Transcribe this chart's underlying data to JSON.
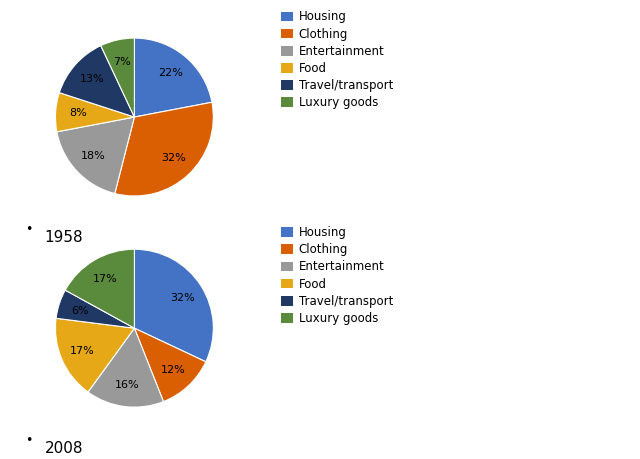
{
  "legend_labels": [
    "Housing",
    "Clothing",
    "Entertainment",
    "Food",
    "Travel/transport",
    "Luxury goods"
  ],
  "slice_colors": [
    "#4472C4",
    "#D95F02",
    "#999999",
    "#E6A817",
    "#1F3864",
    "#5A8A3C"
  ],
  "values_1958": [
    22,
    32,
    18,
    8,
    13,
    7
  ],
  "values_2008": [
    32,
    12,
    16,
    17,
    6,
    17
  ],
  "year_1958": "1958",
  "year_2008": "2008",
  "pct_fontsize": 8,
  "legend_fontsize": 8.5,
  "year_fontsize": 11,
  "bg_color": "#FFFFFF"
}
